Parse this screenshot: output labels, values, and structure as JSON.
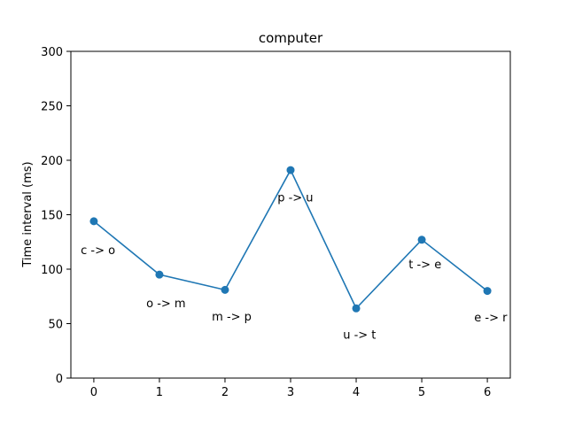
{
  "chart_data": {
    "type": "line",
    "title": "computer",
    "xlabel": "",
    "ylabel": "Time interval (ms)",
    "x": [
      0,
      1,
      2,
      3,
      4,
      5,
      6
    ],
    "xticks": [
      "0",
      "1",
      "2",
      "3",
      "4",
      "5",
      "6"
    ],
    "xlim": [
      -0.35,
      6.35
    ],
    "ylim": [
      0,
      300
    ],
    "yticks": [
      "0",
      "50",
      "100",
      "150",
      "200",
      "250",
      "300"
    ],
    "series": [
      {
        "values": [
          144,
          95,
          81,
          191,
          64,
          127,
          80
        ],
        "color": "#1f77b4",
        "marker": "circle"
      }
    ],
    "annotations": [
      {
        "text": "c -> o",
        "x": -0.2,
        "y": 114
      },
      {
        "text": "o -> m",
        "x": 0.8,
        "y": 65
      },
      {
        "text": "m -> p",
        "x": 1.8,
        "y": 53
      },
      {
        "text": "p -> u",
        "x": 2.8,
        "y": 162
      },
      {
        "text": "u -> t",
        "x": 3.8,
        "y": 36
      },
      {
        "text": "t -> e",
        "x": 4.8,
        "y": 101
      },
      {
        "text": "e -> r",
        "x": 5.8,
        "y": 52
      }
    ],
    "grid": false,
    "legend": "none"
  }
}
